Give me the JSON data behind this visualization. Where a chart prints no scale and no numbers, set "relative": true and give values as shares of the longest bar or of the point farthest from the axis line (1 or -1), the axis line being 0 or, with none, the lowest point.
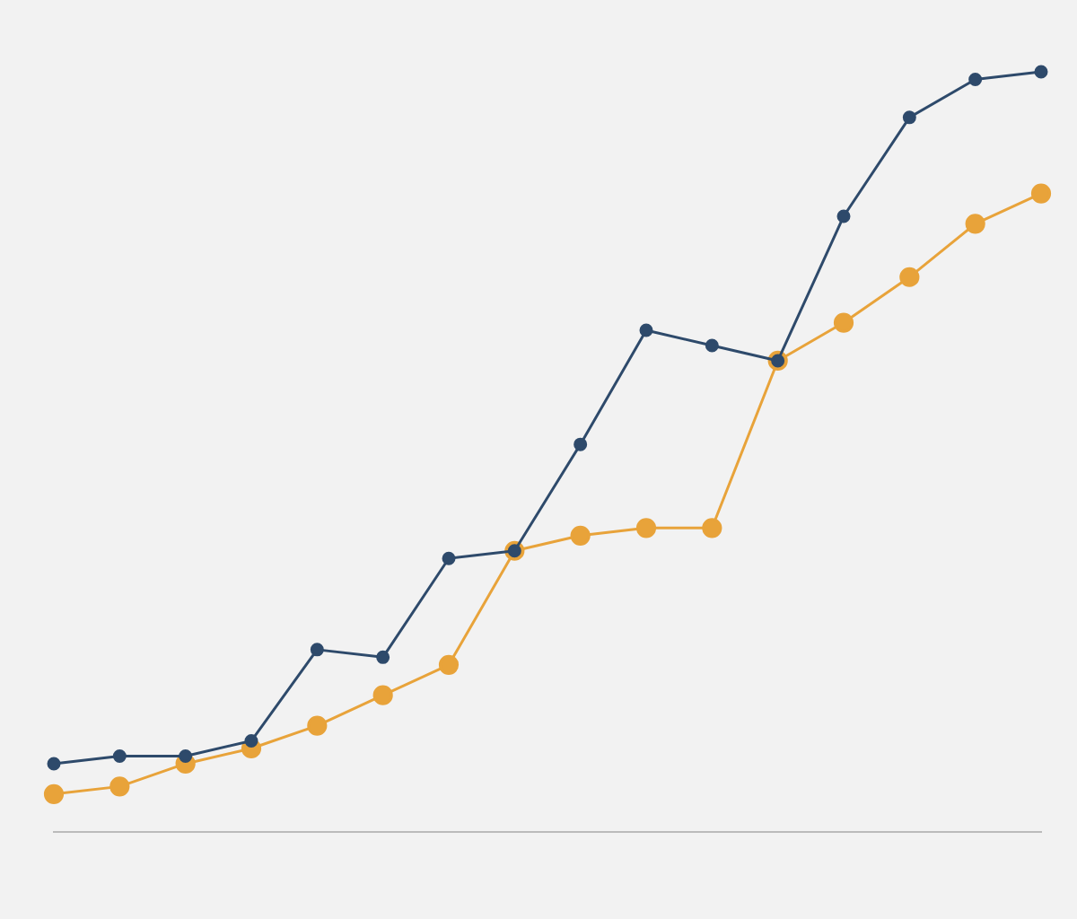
{
  "chart_data": {
    "type": "line",
    "relative": true,
    "marker": "circle",
    "categories": [
      null,
      null,
      null,
      null,
      null,
      null,
      null,
      null,
      null,
      null,
      null,
      null,
      null,
      null,
      null,
      null
    ],
    "series": [
      {
        "color": "#2e4a6b",
        "values": [
          0.09,
          0.1,
          0.1,
          0.12,
          0.24,
          0.23,
          0.36,
          0.37,
          0.51,
          0.66,
          0.64,
          0.62,
          0.81,
          0.94,
          0.99,
          1
        ]
      },
      {
        "color": "#e8a33a",
        "values": [
          0.05,
          0.06,
          0.09,
          0.11,
          0.14,
          0.18,
          0.22,
          0.37,
          0.39,
          0.4,
          0.4,
          0.62,
          0.67,
          0.73,
          0.8,
          0.84
        ]
      }
    ]
  }
}
